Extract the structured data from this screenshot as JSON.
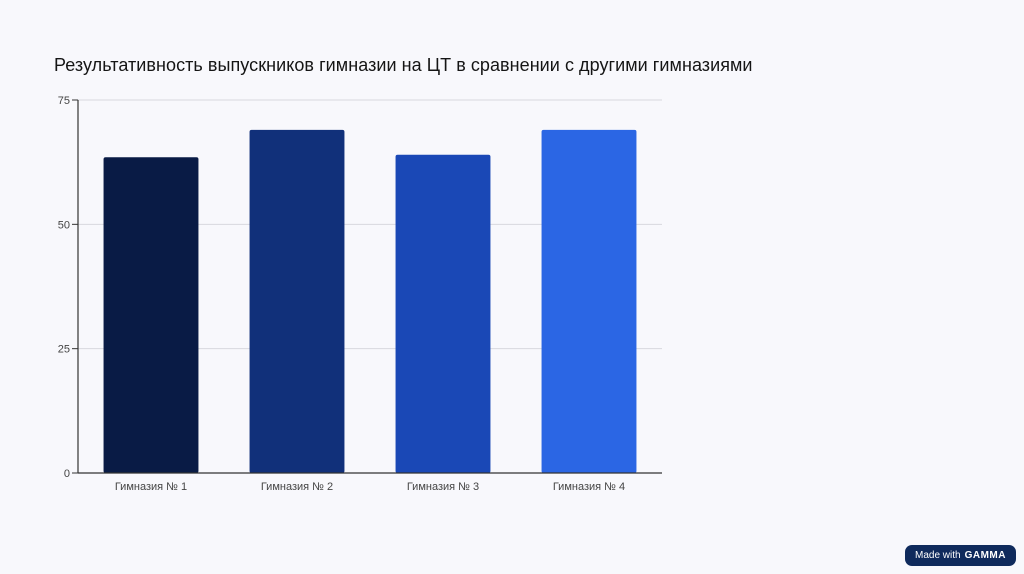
{
  "slide": {
    "title": "Результативность выпускников гимназии на ЦТ в сравнении с другими гимназиями"
  },
  "badge": {
    "label": "Made with",
    "brand": "GAMMA"
  },
  "chart_data": {
    "type": "bar",
    "title": "Результативность выпускников гимназии на ЦТ в сравнении с другими гимназиями",
    "xlabel": "",
    "ylabel": "",
    "categories": [
      "Гимназия № 1",
      "Гимназия № 2",
      "Гимназия № 3",
      "Гимназия № 4"
    ],
    "values": [
      63.5,
      69,
      64,
      69
    ],
    "colors": [
      "#091b45",
      "#11307a",
      "#1a48b6",
      "#2b66e4"
    ],
    "ylim": [
      0,
      75
    ],
    "yticks": [
      0,
      25,
      50,
      75
    ],
    "grid": true,
    "legend": "none"
  }
}
